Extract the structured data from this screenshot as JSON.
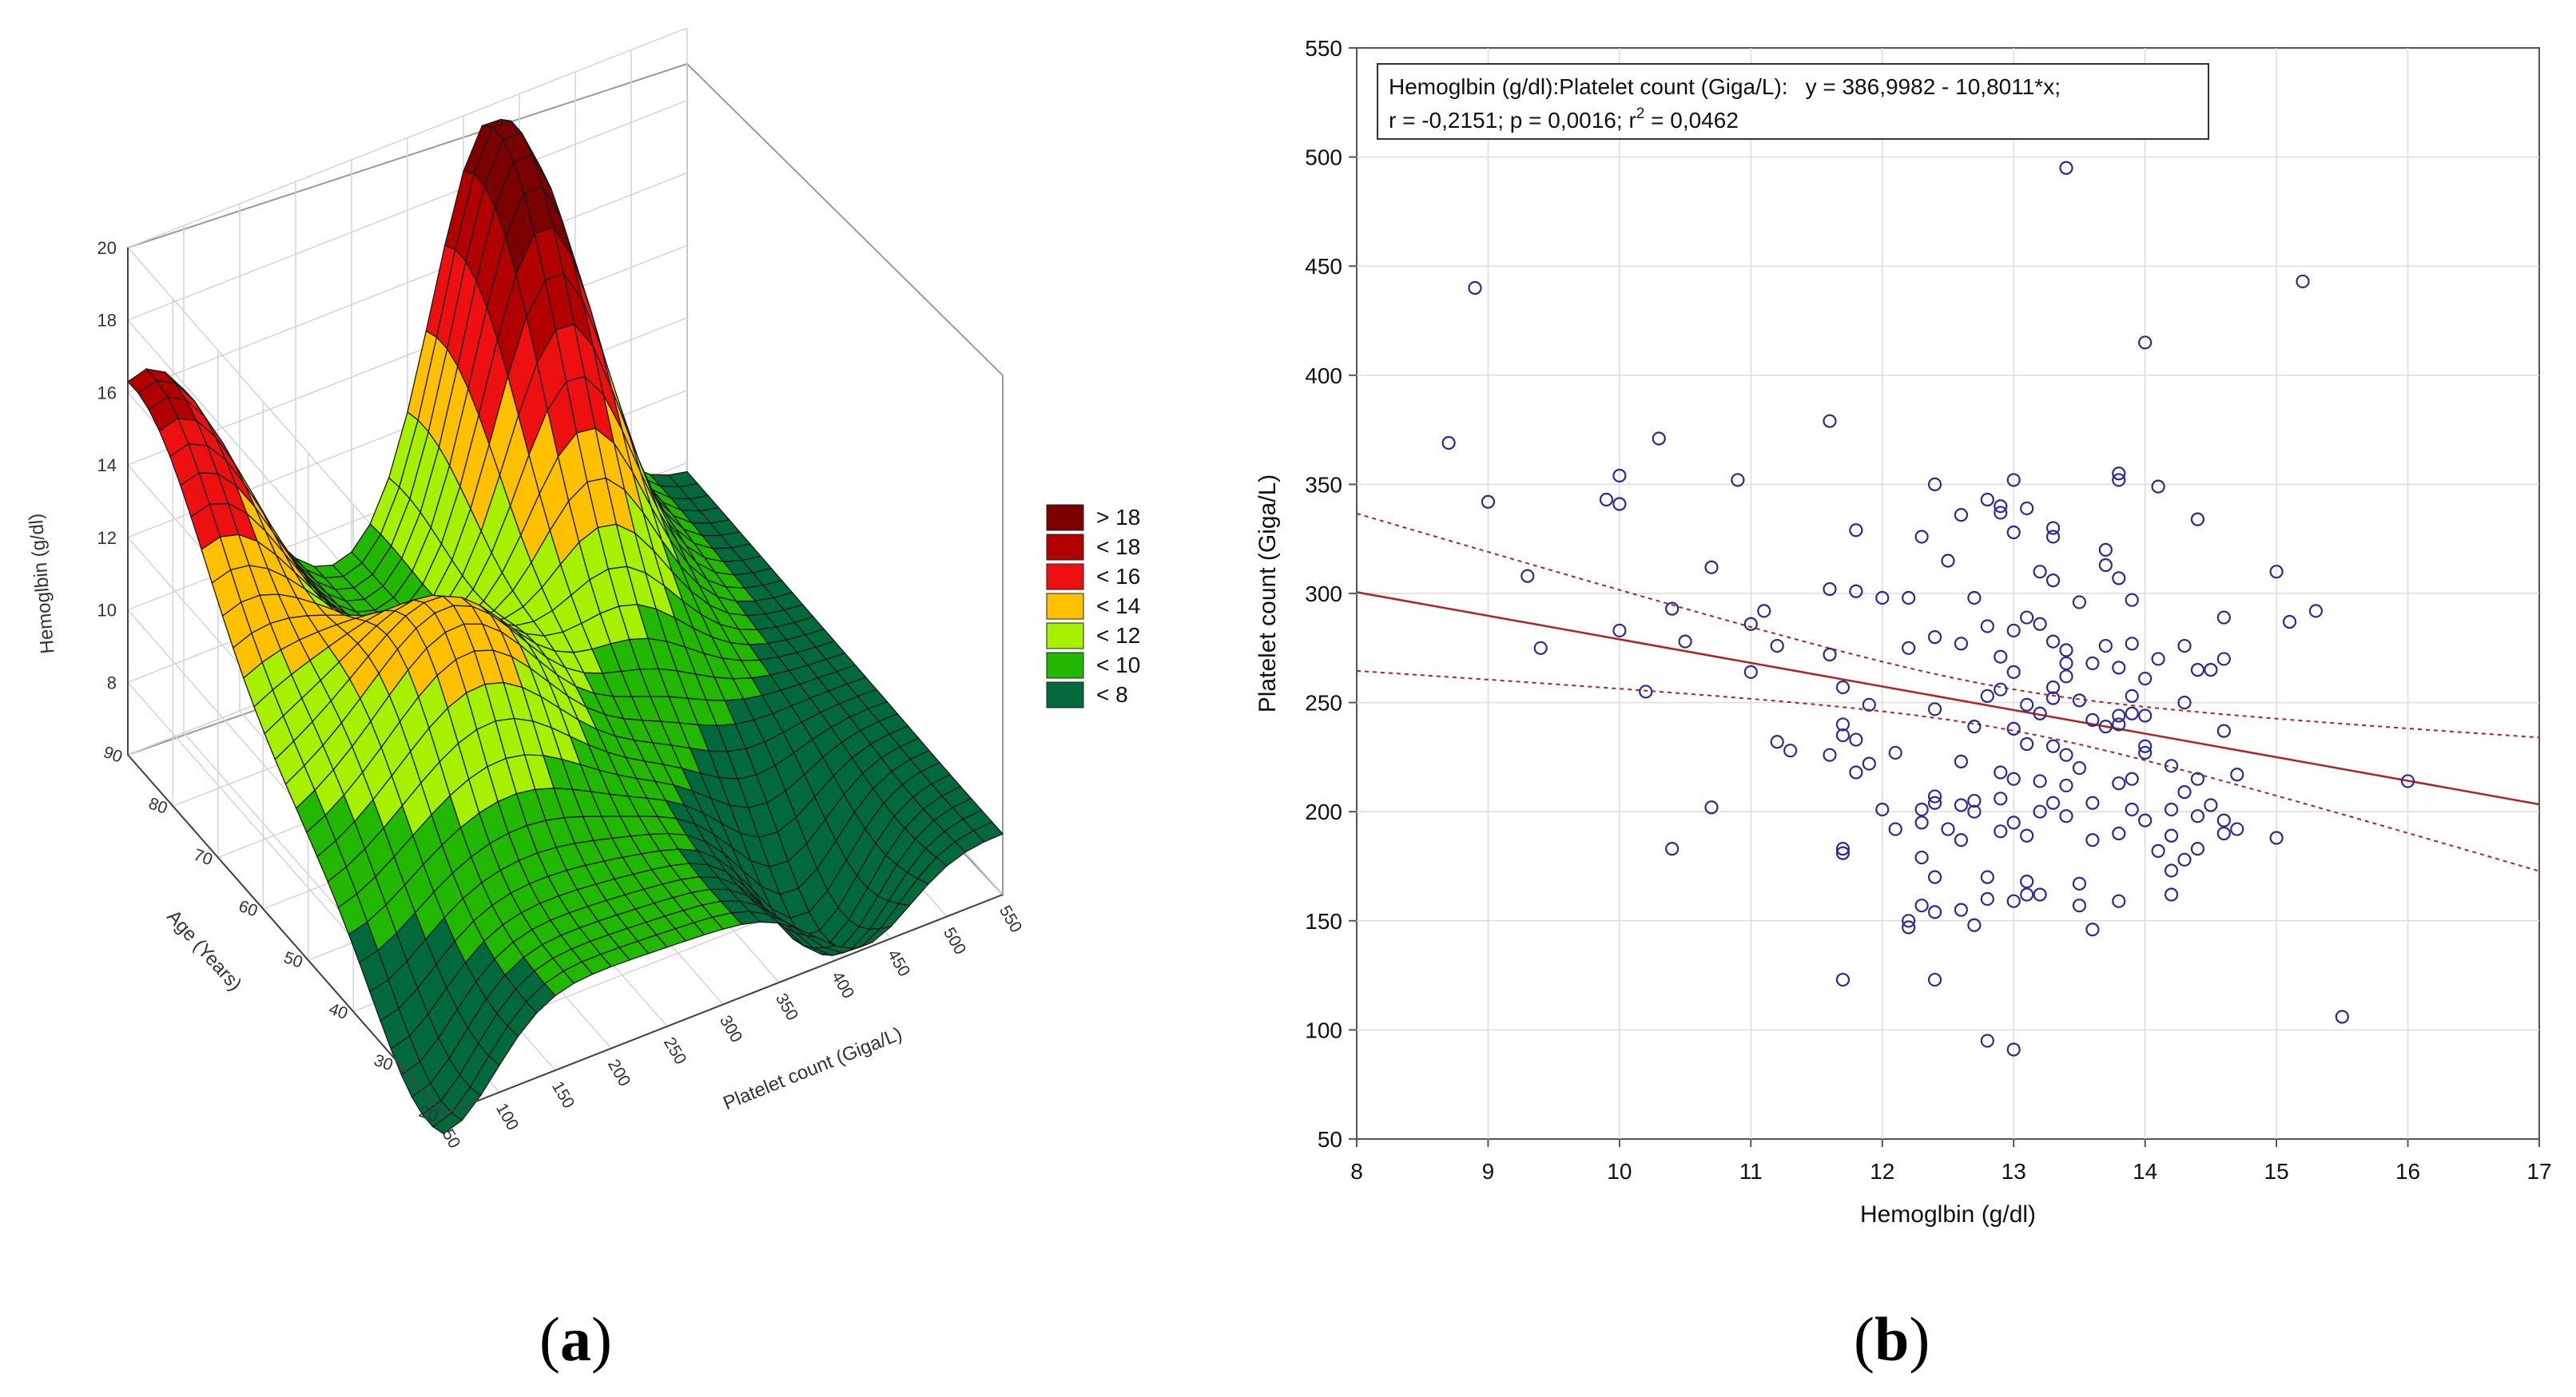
{
  "panel_labels": {
    "a_open": "(",
    "a_letter": "a",
    "a_close": ")",
    "b_open": "(",
    "b_letter": "b",
    "b_close": ")"
  },
  "chart_data": [
    {
      "id": "a",
      "type": "surface3d",
      "title": "",
      "zlabel": "Hemoglbin (g/dl)",
      "ylabel": "Age (Years)",
      "xlabel": "Platelet count (Giga/L)",
      "z_ticks": [
        "20",
        "18",
        "16",
        "14",
        "12",
        "10",
        "8"
      ],
      "y_ticks": [
        "90",
        "80",
        "70",
        "60",
        "50",
        "40",
        "30",
        "20"
      ],
      "x_ticks": [
        "50",
        "100",
        "150",
        "200",
        "250",
        "300",
        "350",
        "400",
        "450",
        "500",
        "550"
      ],
      "zlim": [
        6,
        20
      ],
      "legend": [
        {
          "label": "> 18",
          "color": "#7b0000"
        },
        {
          "label": "< 18",
          "color": "#b20000"
        },
        {
          "label": "< 16",
          "color": "#ee1010"
        },
        {
          "label": "< 14",
          "color": "#ffc000"
        },
        {
          "label": "< 12",
          "color": "#a6f000"
        },
        {
          "label": "< 10",
          "color": "#22b800"
        },
        {
          "label": "< 8",
          "color": "#006a3c"
        }
      ]
    },
    {
      "id": "b",
      "type": "scatter",
      "xlabel": "Hemoglbin (g/dl)",
      "ylabel": "Platelet count (Giga/L)",
      "xlim": [
        8,
        17
      ],
      "ylim": [
        50,
        550
      ],
      "x_ticks": [
        8,
        9,
        10,
        11,
        12,
        13,
        14,
        15,
        16,
        17
      ],
      "y_ticks": [
        50,
        100,
        150,
        200,
        250,
        300,
        350,
        400,
        450,
        500,
        550
      ],
      "regression": {
        "intercept": 386.9982,
        "slope": -10.8011
      },
      "annotation": {
        "line1_label": "Hemoglbin (g/dl):Platelet count (Giga/L):",
        "line1_equation": "y = 386,9982 - 10,8011*x;",
        "line2_r": "r = -0,2151; p = 0,0016; r",
        "line2_sup": "2",
        "line2_tail": " = 0,0462"
      },
      "point_color": "#2a2a9a",
      "line_color": "#b22222",
      "points": [
        [
          13.4,
          495
        ],
        [
          8.9,
          440
        ],
        [
          15.2,
          443
        ],
        [
          14.0,
          415
        ],
        [
          8.7,
          369
        ],
        [
          11.6,
          379
        ],
        [
          10.3,
          371
        ],
        [
          9.0,
          342
        ],
        [
          9.9,
          343
        ],
        [
          10.0,
          341
        ],
        [
          10.0,
          354
        ],
        [
          10.9,
          352
        ],
        [
          11.8,
          329
        ],
        [
          12.4,
          350
        ],
        [
          12.8,
          343
        ],
        [
          13.0,
          352
        ],
        [
          12.3,
          326
        ],
        [
          12.9,
          337
        ],
        [
          13.8,
          352
        ],
        [
          13.8,
          355
        ],
        [
          14.1,
          349
        ],
        [
          14.4,
          334
        ],
        [
          13.3,
          330
        ],
        [
          13.3,
          326
        ],
        [
          12.6,
          336
        ],
        [
          12.9,
          340
        ],
        [
          13.1,
          339
        ],
        [
          12.5,
          315
        ],
        [
          13.0,
          328
        ],
        [
          13.7,
          320
        ],
        [
          13.7,
          313
        ],
        [
          13.8,
          307
        ],
        [
          15.0,
          310
        ],
        [
          9.3,
          308
        ],
        [
          10.7,
          312
        ],
        [
          11.6,
          302
        ],
        [
          11.8,
          301
        ],
        [
          12.0,
          298
        ],
        [
          12.2,
          298
        ],
        [
          12.7,
          298
        ],
        [
          13.2,
          310
        ],
        [
          13.3,
          306
        ],
        [
          13.5,
          296
        ],
        [
          13.9,
          297
        ],
        [
          11.1,
          292
        ],
        [
          11.0,
          286
        ],
        [
          10.4,
          293
        ],
        [
          14.6,
          289
        ],
        [
          15.1,
          287
        ],
        [
          15.3,
          292
        ],
        [
          10.0,
          283
        ],
        [
          10.5,
          278
        ],
        [
          11.2,
          276
        ],
        [
          12.2,
          275
        ],
        [
          12.4,
          280
        ],
        [
          12.6,
          277
        ],
        [
          12.8,
          285
        ],
        [
          13.0,
          283
        ],
        [
          13.1,
          289
        ],
        [
          13.2,
          286
        ],
        [
          13.3,
          278
        ],
        [
          13.4,
          274
        ],
        [
          13.4,
          268
        ],
        [
          13.6,
          268
        ],
        [
          13.7,
          276
        ],
        [
          13.9,
          277
        ],
        [
          14.1,
          270
        ],
        [
          14.4,
          265
        ],
        [
          14.5,
          265
        ],
        [
          14.6,
          270
        ],
        [
          14.3,
          276
        ],
        [
          9.4,
          275
        ],
        [
          11.6,
          272
        ],
        [
          11.0,
          264
        ],
        [
          12.9,
          271
        ],
        [
          13.0,
          264
        ],
        [
          13.4,
          262
        ],
        [
          13.8,
          266
        ],
        [
          14.0,
          261
        ],
        [
          10.2,
          255
        ],
        [
          11.7,
          257
        ],
        [
          12.8,
          253
        ],
        [
          12.9,
          256
        ],
        [
          13.3,
          257
        ],
        [
          13.3,
          252
        ],
        [
          13.5,
          251
        ],
        [
          13.9,
          253
        ],
        [
          14.3,
          250
        ],
        [
          11.9,
          249
        ],
        [
          12.4,
          247
        ],
        [
          13.1,
          249
        ],
        [
          13.2,
          245
        ],
        [
          13.6,
          242
        ],
        [
          13.8,
          244
        ],
        [
          13.9,
          245
        ],
        [
          14.0,
          244
        ],
        [
          11.7,
          240
        ],
        [
          12.7,
          239
        ],
        [
          13.0,
          238
        ],
        [
          13.7,
          239
        ],
        [
          13.8,
          240
        ],
        [
          14.6,
          237
        ],
        [
          11.2,
          232
        ],
        [
          11.7,
          235
        ],
        [
          11.8,
          233
        ],
        [
          11.3,
          228
        ],
        [
          11.6,
          226
        ],
        [
          12.1,
          227
        ],
        [
          13.1,
          231
        ],
        [
          13.3,
          230
        ],
        [
          13.4,
          226
        ],
        [
          13.5,
          220
        ],
        [
          14.0,
          230
        ],
        [
          14.0,
          227
        ],
        [
          14.2,
          221
        ],
        [
          14.7,
          217
        ],
        [
          11.9,
          222
        ],
        [
          11.8,
          218
        ],
        [
          12.6,
          223
        ],
        [
          12.9,
          218
        ],
        [
          13.0,
          215
        ],
        [
          13.2,
          214
        ],
        [
          13.4,
          212
        ],
        [
          13.8,
          213
        ],
        [
          13.9,
          215
        ],
        [
          14.3,
          209
        ],
        [
          14.4,
          215
        ],
        [
          16.0,
          214
        ],
        [
          10.7,
          202
        ],
        [
          12.0,
          201
        ],
        [
          12.3,
          201
        ],
        [
          12.4,
          204
        ],
        [
          12.4,
          207
        ],
        [
          12.6,
          203
        ],
        [
          12.7,
          205
        ],
        [
          12.7,
          200
        ],
        [
          12.9,
          206
        ],
        [
          13.2,
          200
        ],
        [
          13.3,
          204
        ],
        [
          13.4,
          198
        ],
        [
          13.6,
          204
        ],
        [
          13.9,
          201
        ],
        [
          14.0,
          196
        ],
        [
          14.2,
          201
        ],
        [
          14.4,
          198
        ],
        [
          14.5,
          203
        ],
        [
          14.6,
          196
        ],
        [
          14.7,
          192
        ],
        [
          12.1,
          192
        ],
        [
          12.3,
          195
        ],
        [
          12.5,
          192
        ],
        [
          12.6,
          187
        ],
        [
          12.9,
          191
        ],
        [
          13.0,
          195
        ],
        [
          13.1,
          189
        ],
        [
          13.8,
          190
        ],
        [
          14.2,
          189
        ],
        [
          14.6,
          190
        ],
        [
          15.0,
          188
        ],
        [
          10.4,
          183
        ],
        [
          11.7,
          183
        ],
        [
          11.7,
          181
        ],
        [
          12.3,
          179
        ],
        [
          13.6,
          187
        ],
        [
          14.1,
          182
        ],
        [
          14.3,
          178
        ],
        [
          14.4,
          183
        ],
        [
          14.2,
          173
        ],
        [
          12.4,
          170
        ],
        [
          12.8,
          170
        ],
        [
          13.1,
          168
        ],
        [
          13.5,
          167
        ],
        [
          12.8,
          160
        ],
        [
          13.0,
          159
        ],
        [
          13.1,
          162
        ],
        [
          13.2,
          162
        ],
        [
          13.5,
          157
        ],
        [
          13.8,
          159
        ],
        [
          14.2,
          162
        ],
        [
          12.2,
          150
        ],
        [
          12.2,
          147
        ],
        [
          12.3,
          157
        ],
        [
          12.4,
          154
        ],
        [
          12.6,
          155
        ],
        [
          12.7,
          148
        ],
        [
          13.6,
          146
        ],
        [
          11.7,
          123
        ],
        [
          12.4,
          123
        ],
        [
          15.5,
          106
        ],
        [
          12.8,
          95
        ],
        [
          13.0,
          91
        ]
      ]
    }
  ]
}
